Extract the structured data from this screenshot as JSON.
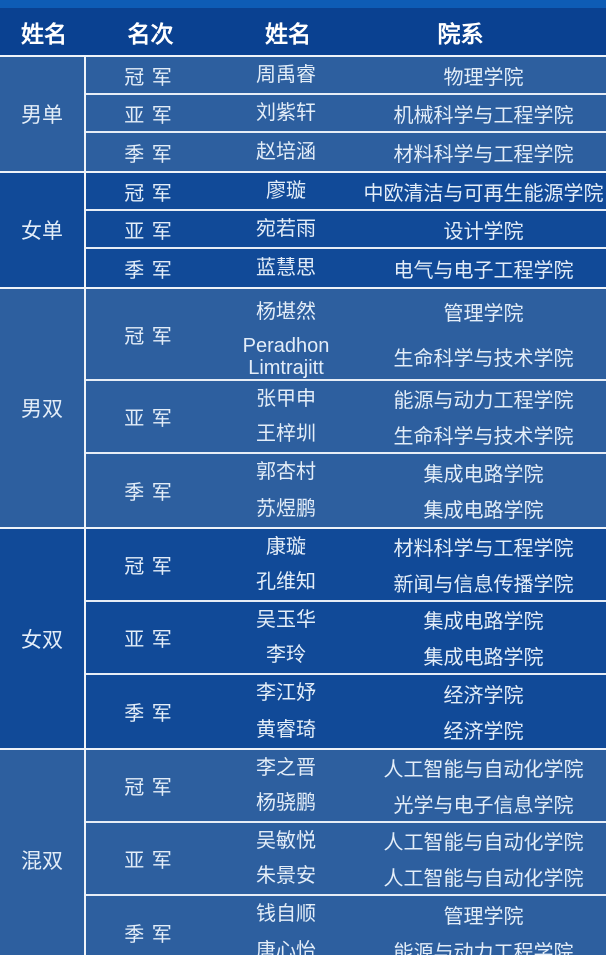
{
  "table": {
    "headers": [
      "姓名",
      "名次",
      "姓名",
      "院系"
    ],
    "sections": [
      {
        "category": "男单",
        "tone": "light",
        "rows": [
          {
            "rank": "冠 军",
            "entries": [
              {
                "name": "周禹睿",
                "dept": "物理学院"
              }
            ]
          },
          {
            "rank": "亚 军",
            "entries": [
              {
                "name": "刘紫轩",
                "dept": "机械科学与工程学院"
              }
            ]
          },
          {
            "rank": "季 军",
            "entries": [
              {
                "name": "赵培涵",
                "dept": "材料科学与工程学院"
              }
            ]
          }
        ]
      },
      {
        "category": "女单",
        "tone": "dark",
        "rows": [
          {
            "rank": "冠 军",
            "entries": [
              {
                "name": "廖璇",
                "dept": "中欧清洁与可再生能源学院"
              }
            ]
          },
          {
            "rank": "亚 军",
            "entries": [
              {
                "name": "宛若雨",
                "dept": "设计学院"
              }
            ]
          },
          {
            "rank": "季 军",
            "entries": [
              {
                "name": "蓝慧思",
                "dept": "电气与电子工程学院"
              }
            ]
          }
        ]
      },
      {
        "category": "男双",
        "tone": "light",
        "rows": [
          {
            "rank": "冠 军",
            "entries": [
              {
                "name": "杨堪然",
                "dept": "管理学院"
              },
              {
                "name": "Peradhon Limtrajitt",
                "dept": "生命科学与技术学院"
              }
            ]
          },
          {
            "rank": "亚 军",
            "entries": [
              {
                "name": "张甲申",
                "dept": "能源与动力工程学院"
              },
              {
                "name": "王梓圳",
                "dept": "生命科学与技术学院"
              }
            ]
          },
          {
            "rank": "季 军",
            "entries": [
              {
                "name": "郭杏村",
                "dept": "集成电路学院"
              },
              {
                "name": "苏煜鹏",
                "dept": "集成电路学院"
              }
            ]
          }
        ]
      },
      {
        "category": "女双",
        "tone": "dark",
        "rows": [
          {
            "rank": "冠 军",
            "entries": [
              {
                "name": "康璇",
                "dept": "材料科学与工程学院"
              },
              {
                "name": "孔维知",
                "dept": "新闻与信息传播学院"
              }
            ]
          },
          {
            "rank": "亚 军",
            "entries": [
              {
                "name": "吴玉华",
                "dept": "集成电路学院"
              },
              {
                "name": "李玲",
                "dept": "集成电路学院"
              }
            ]
          },
          {
            "rank": "季 军",
            "entries": [
              {
                "name": "李江妤",
                "dept": "经济学院"
              },
              {
                "name": "黄睿琦",
                "dept": "经济学院"
              }
            ]
          }
        ]
      },
      {
        "category": "混双",
        "tone": "light",
        "rows": [
          {
            "rank": "冠 军",
            "entries": [
              {
                "name": "李之晋",
                "dept": "人工智能与自动化学院"
              },
              {
                "name": "杨骁鹏",
                "dept": "光学与电子信息学院"
              }
            ]
          },
          {
            "rank": "亚 军",
            "entries": [
              {
                "name": "吴敏悦",
                "dept": "人工智能与自动化学院"
              },
              {
                "name": "朱景安",
                "dept": "人工智能与自动化学院"
              }
            ]
          },
          {
            "rank": "季 军",
            "entries": [
              {
                "name": "钱自顺",
                "dept": "管理学院"
              },
              {
                "name": "唐心怡",
                "dept": "能源与动力工程学院"
              }
            ]
          }
        ]
      }
    ]
  },
  "colors": {
    "page_background": "#0e5cb5",
    "header_background": "#0a4191",
    "section_light": "#2d5f9f",
    "section_dark": "#114a98",
    "grid_line": "#eef3f9",
    "header_text": "#ffffff",
    "body_text": "#e3edf8"
  }
}
